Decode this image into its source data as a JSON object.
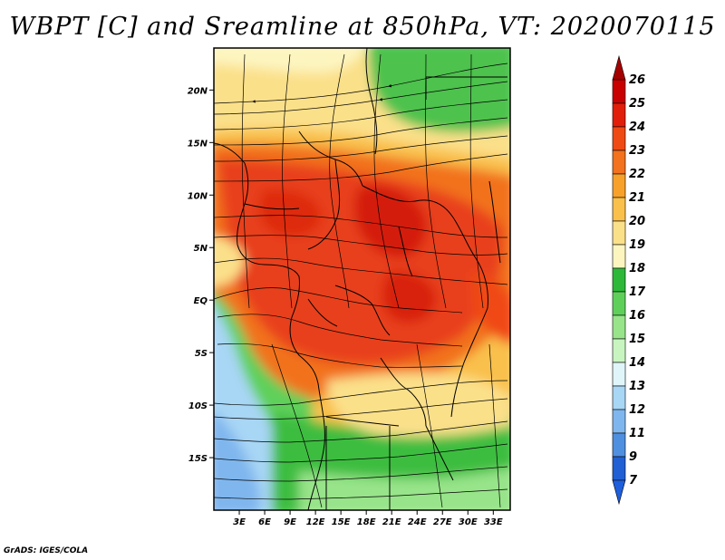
{
  "title": "WBPT [C] and Sreamline at 850hPa, VT: 2020070115",
  "credit": "GrADS: IGES/COLA",
  "map": {
    "lon_range": [
      0,
      35
    ],
    "lat_range": [
      -20,
      24
    ],
    "lon_ticks": [
      "3E",
      "6E",
      "9E",
      "12E",
      "15E",
      "18E",
      "21E",
      "24E",
      "27E",
      "30E",
      "33E"
    ],
    "lon_tick_values": [
      3,
      6,
      9,
      12,
      15,
      18,
      21,
      24,
      27,
      30,
      33
    ],
    "lat_ticks": [
      "20N",
      "15N",
      "10N",
      "5N",
      "EQ",
      "5S",
      "10S",
      "15S"
    ],
    "lat_tick_values": [
      20,
      15,
      10,
      5,
      0,
      -5,
      -10,
      -15
    ],
    "field": "Wet-bulb potential temperature",
    "level": "850hPa"
  },
  "colorbar": {
    "labels": [
      "26",
      "25",
      "24",
      "23",
      "22",
      "21",
      "20",
      "19",
      "18",
      "17",
      "16",
      "15",
      "14",
      "13",
      "12",
      "11",
      "9",
      "7"
    ],
    "colors": [
      "#a50000",
      "#c80000",
      "#e11e0a",
      "#f04a14",
      "#f2721e",
      "#f7a12a",
      "#f9c04b",
      "#fbe08a",
      "#fdf5c0",
      "#2db83a",
      "#5ed05a",
      "#98e48a",
      "#c8f4c0",
      "#e0f5fa",
      "#a8d6f5",
      "#7fb6ee",
      "#4f8fe0",
      "#2160d4",
      "#1e5fdc"
    ]
  }
}
